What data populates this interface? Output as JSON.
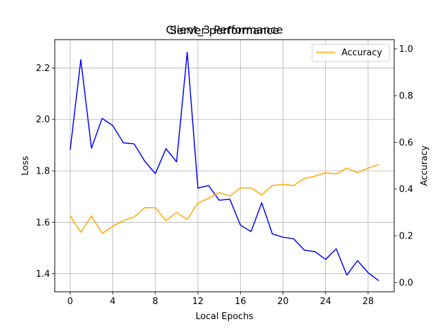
{
  "chart_data": {
    "type": "line",
    "titles": [
      "Client_3 Performance",
      "Server performance"
    ],
    "xlabel": "Local Epochs",
    "ylabel_left": "Loss",
    "ylabel_right": "Accuracy",
    "x": [
      0,
      1,
      2,
      3,
      4,
      5,
      6,
      7,
      8,
      9,
      10,
      11,
      12,
      13,
      14,
      15,
      16,
      17,
      18,
      19,
      20,
      21,
      22,
      23,
      24,
      25,
      26,
      27,
      28,
      29
    ],
    "xlim": [
      -1.45,
      30.45
    ],
    "xticks": [
      0,
      4,
      8,
      12,
      16,
      20,
      24,
      28
    ],
    "ylim_left": [
      1.33,
      2.31
    ],
    "yticks_left": [
      "1.4",
      "1.6",
      "1.8",
      "2.0",
      "2.2"
    ],
    "ylim_right": [
      -0.04,
      1.04
    ],
    "yticks_right": [
      "0.0",
      "0.2",
      "0.4",
      "0.6",
      "0.8",
      "1.0"
    ],
    "grid": true,
    "legend_position": "top-right",
    "series": [
      {
        "name": "",
        "axis": "left",
        "color": "#0000ff",
        "values": [
          1.882,
          2.232,
          1.888,
          2.004,
          1.976,
          1.909,
          1.905,
          1.838,
          1.789,
          1.886,
          1.835,
          2.261,
          1.733,
          1.743,
          1.686,
          1.69,
          1.589,
          1.564,
          1.676,
          1.555,
          1.542,
          1.536,
          1.492,
          1.486,
          1.456,
          1.497,
          1.395,
          1.451,
          1.404,
          1.373
        ]
      },
      {
        "name": "Accuracy",
        "axis": "right",
        "color": "#ffa500",
        "values": [
          0.285,
          0.215,
          0.285,
          0.21,
          0.24,
          0.265,
          0.28,
          0.32,
          0.32,
          0.265,
          0.3,
          0.27,
          0.34,
          0.36,
          0.385,
          0.37,
          0.405,
          0.405,
          0.375,
          0.415,
          0.42,
          0.415,
          0.445,
          0.455,
          0.47,
          0.465,
          0.49,
          0.47,
          0.49,
          0.505
        ]
      }
    ]
  }
}
